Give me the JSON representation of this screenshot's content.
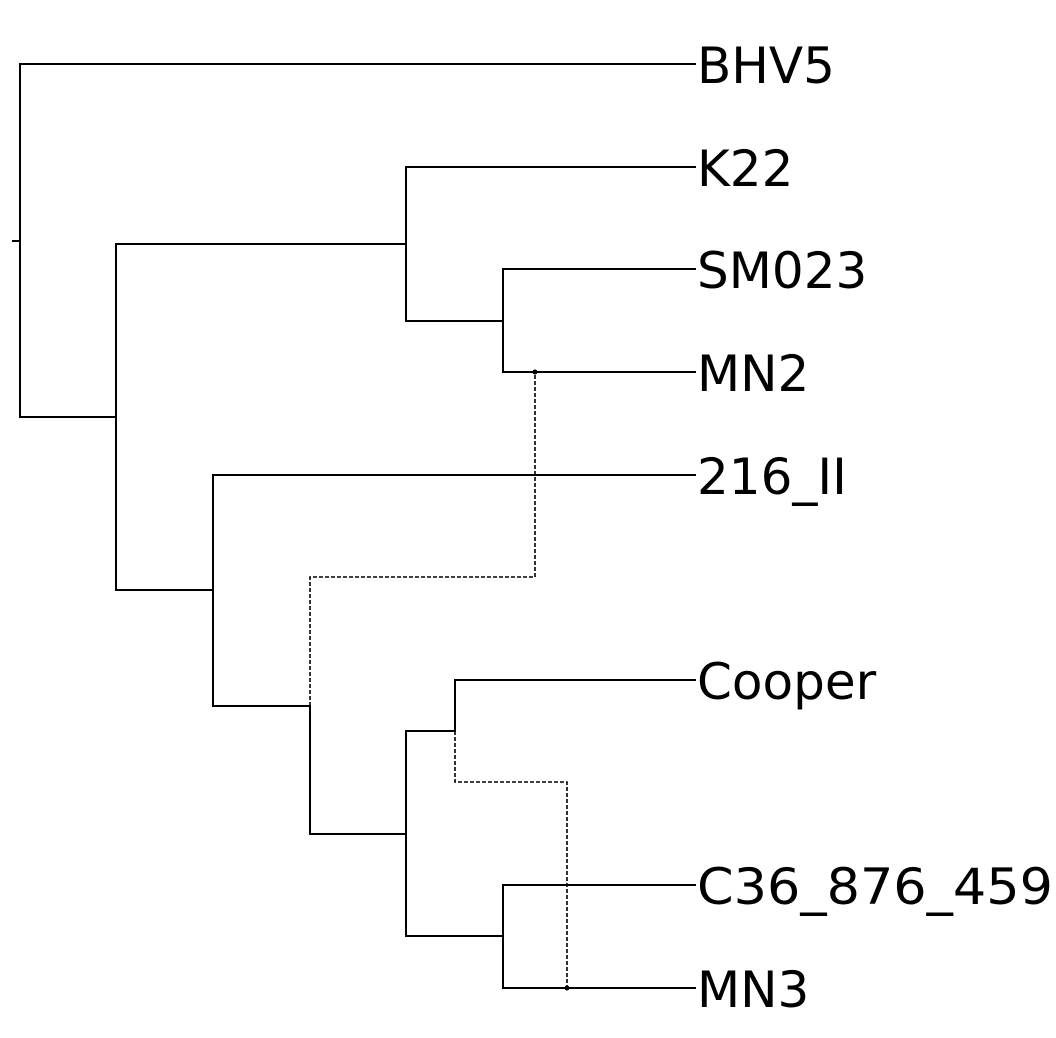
{
  "taxa": {
    "bhv5": "BHV5",
    "k22": "K22",
    "sm023": "SM023",
    "mn2": "MN2",
    "t216_ii": "216_II",
    "cooper": "Cooper",
    "c36_876_459": "C36_876_459",
    "mn3": "MN3"
  },
  "colors": {
    "branch": "#000000",
    "background": "#ffffff"
  }
}
